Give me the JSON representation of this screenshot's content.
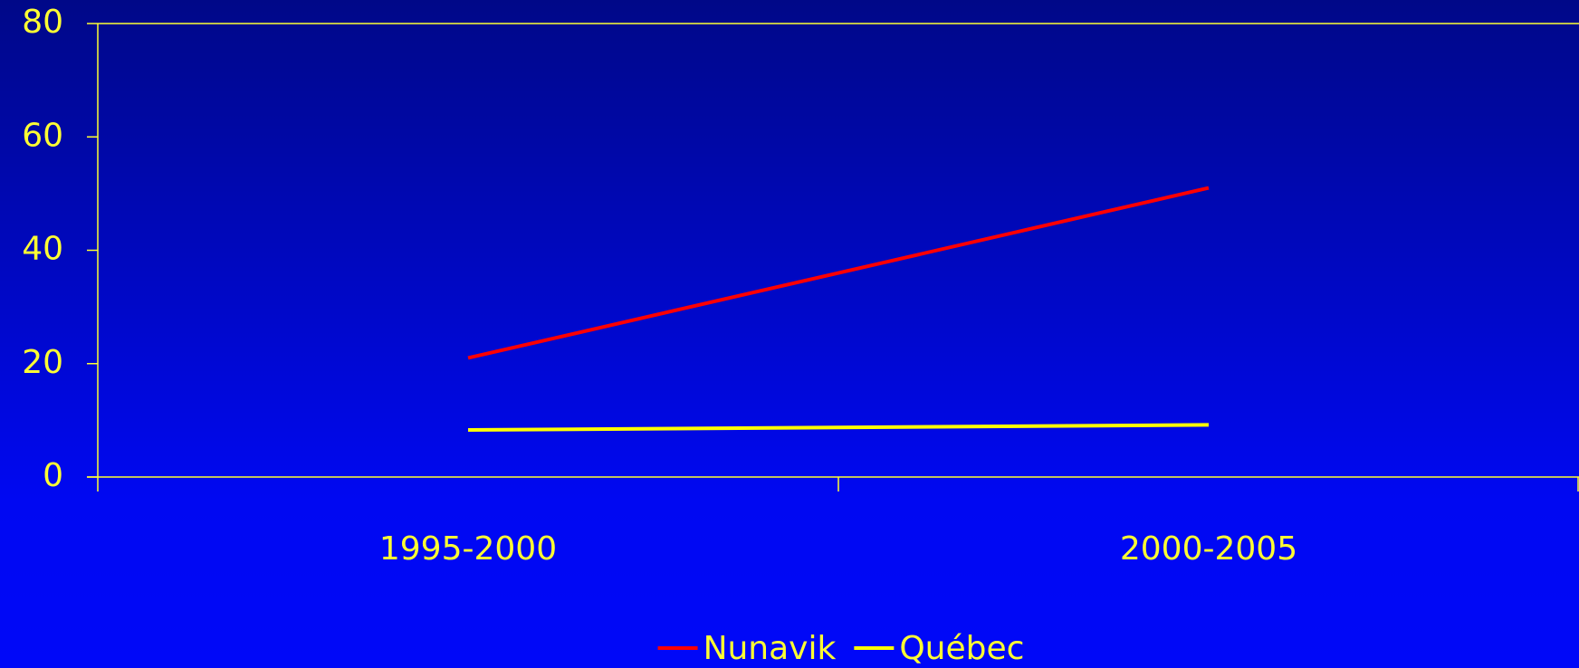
{
  "chart_data": {
    "type": "line",
    "categories": [
      "1995-2000",
      "2000-2005"
    ],
    "series": [
      {
        "name": "Nunavik",
        "color": "#ff0000",
        "values": [
          21,
          51
        ]
      },
      {
        "name": "Québec",
        "color": "#ffff00",
        "values": [
          8.3,
          9.2
        ]
      }
    ],
    "ylim": [
      0,
      80
    ],
    "yticks": [
      0,
      20,
      40,
      60,
      80
    ],
    "legend": "bottom"
  }
}
